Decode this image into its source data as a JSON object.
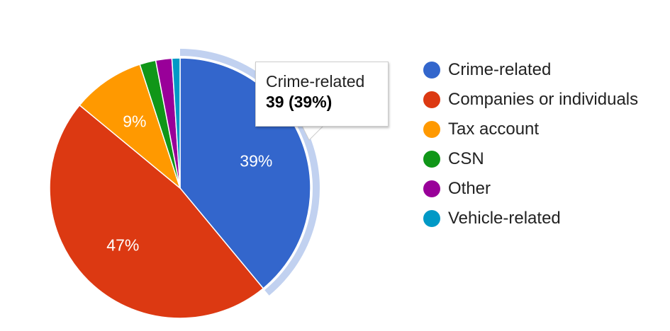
{
  "chart_data": {
    "type": "pie",
    "title": "",
    "slices": [
      {
        "label": "Crime-related",
        "value": 39,
        "percent_label": "39%",
        "color": "#3366cc"
      },
      {
        "label": "Companies or individuals",
        "value": 47,
        "percent_label": "47%",
        "color": "#dc3912"
      },
      {
        "label": "Tax account",
        "value": 9,
        "percent_label": "9%",
        "color": "#ff9900"
      },
      {
        "label": "CSN",
        "value": 2,
        "percent_label": "",
        "color": "#109618"
      },
      {
        "label": "Other",
        "value": 2,
        "percent_label": "",
        "color": "#990099"
      },
      {
        "label": "Vehicle-related",
        "value": 1,
        "percent_label": "",
        "color": "#0099c6"
      }
    ],
    "highlighted": "Crime-related",
    "legend_position": "right",
    "tooltip": {
      "name": "Crime-related",
      "value": "39 (39%)"
    }
  }
}
